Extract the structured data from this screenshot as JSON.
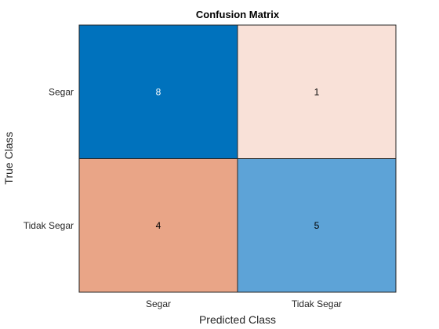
{
  "chart_data": {
    "type": "heatmap",
    "title": "Confusion Matrix",
    "xlabel": "Predicted Class",
    "ylabel": "True Class",
    "x_categories": [
      "Segar",
      "Tidak Segar"
    ],
    "y_categories": [
      "Segar",
      "Tidak Segar"
    ],
    "matrix": [
      [
        8,
        1
      ],
      [
        4,
        5
      ]
    ],
    "cell_colors": [
      [
        "#0072BD",
        "#F9E1D8"
      ],
      [
        "#E9A587",
        "#5DA3D7"
      ]
    ],
    "cell_text_colors": [
      [
        "#ffffff",
        "#000000"
      ],
      [
        "#000000",
        "#000000"
      ]
    ],
    "grid": false,
    "legend": "none"
  }
}
